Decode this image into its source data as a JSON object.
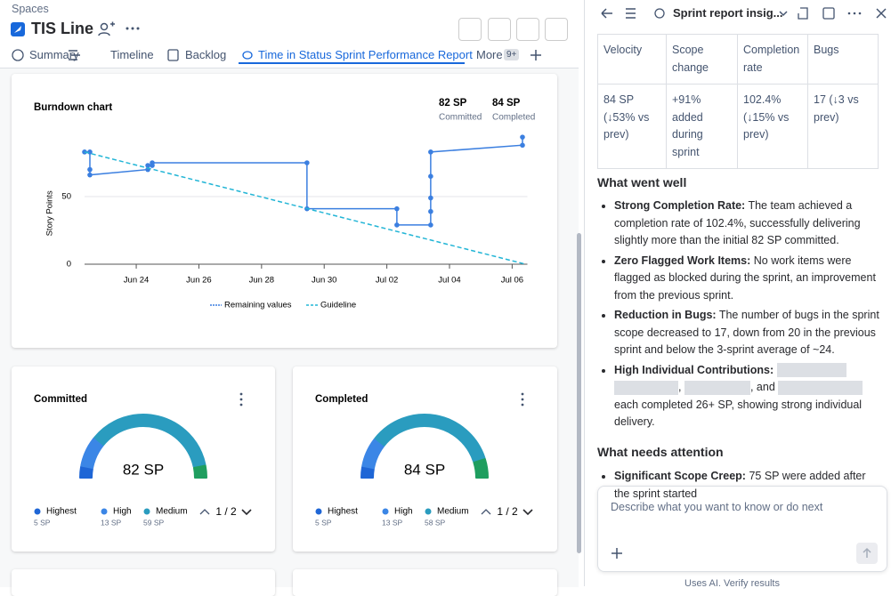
{
  "header": {
    "breadcrumb": "Spaces",
    "title": "TIS Line"
  },
  "tabs": {
    "items": [
      "Summary",
      "Timeline",
      "Backlog",
      "Time in Status Sprint Performance Report"
    ],
    "more": "More",
    "more_count": "9+"
  },
  "burndown": {
    "type": "line",
    "title": "Burndown chart",
    "stats": [
      {
        "value": "82 SP",
        "label": "Committed"
      },
      {
        "value": "84 SP",
        "label": "Completed"
      }
    ],
    "y_label": "Story Points",
    "xlim": [
      22.35,
      36.43
    ],
    "ylim": [
      0,
      95
    ],
    "xticks": [
      {
        "value": 24,
        "label": "Jun 24"
      },
      {
        "value": 26,
        "label": "Jun 26"
      },
      {
        "value": 28,
        "label": "Jun 28"
      },
      {
        "value": 30,
        "label": "Jun 30"
      },
      {
        "value": 32,
        "label": "Jul 02"
      },
      {
        "value": 34,
        "label": "Jul 04"
      },
      {
        "value": 36,
        "label": "Jul 06"
      }
    ],
    "yticks": [
      0,
      50
    ],
    "series": [
      {
        "name": "Remaining values",
        "color": "#3b7fe0",
        "markers": true,
        "x": [
          22.35,
          22.52,
          22.52,
          22.52,
          24.37,
          24.37,
          24.51,
          24.51,
          29.45,
          29.45,
          32.32,
          32.32,
          33.4,
          33.4,
          33.4,
          33.4,
          33.4,
          36.33,
          36.33
        ],
        "values": [
          83,
          83,
          70,
          66,
          70,
          73,
          73,
          75,
          75,
          41,
          41,
          29,
          29,
          39,
          49,
          65,
          83,
          88,
          94
        ]
      },
      {
        "name": "Guideline",
        "color": "#22b5d6",
        "dashed": true,
        "x": [
          22.35,
          36.43
        ],
        "values": [
          83,
          0
        ]
      }
    ]
  },
  "gauges": [
    {
      "title": "Committed",
      "total": 82,
      "total_label": "82 SP",
      "remainder_color": "#1f9e5f",
      "pager": "1 / 2",
      "segments": [
        {
          "name": "Highest",
          "value": 5,
          "value_label": "5 SP",
          "color": "#1f66d6"
        },
        {
          "name": "High",
          "value": 13,
          "value_label": "13 SP",
          "color": "#3b86e6"
        },
        {
          "name": "Medium",
          "value": 59,
          "value_label": "59 SP",
          "color": "#2a9cbf"
        }
      ]
    },
    {
      "title": "Completed",
      "total": 84,
      "total_label": "84 SP",
      "remainder_color": "#1f9e5f",
      "pager": "1 / 2",
      "segments": [
        {
          "name": "Highest",
          "value": 5,
          "value_label": "5 SP",
          "color": "#1f66d6"
        },
        {
          "name": "High",
          "value": 13,
          "value_label": "13 SP",
          "color": "#3b86e6"
        },
        {
          "name": "Medium",
          "value": 58,
          "value_label": "58 SP",
          "color": "#2a9cbf"
        }
      ]
    }
  ],
  "panel": {
    "title": "Sprint report insig...",
    "table": {
      "headers": [
        "Velocity",
        "Scope change",
        "Completion rate",
        "Bugs"
      ],
      "rows": [
        [
          "84 SP (↓53% vs prev)",
          "+91% added during sprint",
          "102.4% (↓15% vs prev)",
          "17 (↓3 vs prev)"
        ]
      ]
    },
    "went_well": {
      "heading": "What went well",
      "items": [
        {
          "lead": "Strong Completion Rate:",
          "text": "The team achieved a completion rate of 102.4%, successfully delivering slightly more than the initial 82 SP committed."
        },
        {
          "lead": "Zero Flagged Work Items:",
          "text": "No work items were flagged as blocked during the sprint, an improvement from the previous sprint."
        },
        {
          "lead": "Reduction in Bugs:",
          "text": "The number of bugs in the sprint scope decreased to 17, down from 20 in the previous sprint and below the 3-sprint average of ~24."
        },
        {
          "lead": "High Individual Contributions:",
          "text_parts": [
            ",",
            ", and",
            "each completed 26+ SP, showing strong individual delivery."
          ]
        }
      ]
    },
    "attention": {
      "heading": "What needs attention",
      "items": [
        {
          "lead": "Significant Scope Creep:",
          "text": "75 SP were added after the sprint started"
        }
      ]
    },
    "input_placeholder": "Describe what you want to know or do next",
    "footer": "Uses AI. Verify results"
  }
}
